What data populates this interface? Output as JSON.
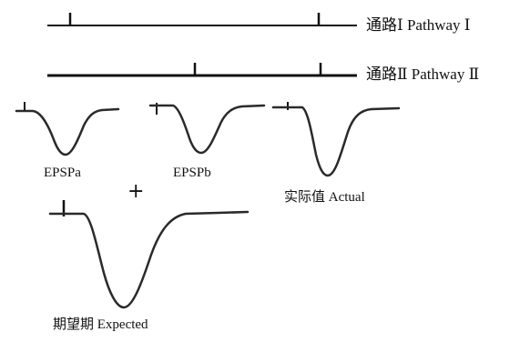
{
  "pathways": {
    "pathway1_label": "通路Ⅰ Pathway Ⅰ",
    "pathway2_label": "通路Ⅱ Pathway Ⅱ"
  },
  "traces": {
    "epspa_label": "EPSPa",
    "epspb_label": "EPSPb",
    "actual_label": "实际值 Actual",
    "expected_label": "期望期 Expected",
    "plus_sign": "+"
  },
  "colors": {
    "ink": "#111111",
    "trace": "#2a2a2a"
  }
}
